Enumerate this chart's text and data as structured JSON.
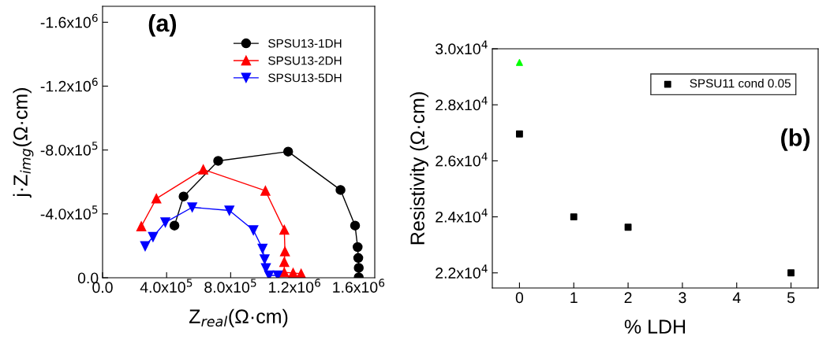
{
  "chart_data": [
    {
      "type": "line",
      "xlabel": "Z$_{real}$(Ω·cm)",
      "ylabel": "j·Z$_{img}$(Ω·cm)",
      "annotations": [
        "(a)"
      ],
      "xlim": [
        0,
        1700000
      ],
      "ylim": [
        0,
        -1700000
      ],
      "xticks": [
        {
          "value": 0,
          "label": "0.0"
        },
        {
          "value": 400000,
          "label": "4.0x10$^{5}$"
        },
        {
          "value": 800000,
          "label": "8.0x10$^{5}$"
        },
        {
          "value": 1200000,
          "label": "1.2x10$^{6}$"
        },
        {
          "value": 1600000,
          "label": "1.6x10$^{6}$"
        }
      ],
      "yticks": [
        {
          "value": 0,
          "label": "0.0"
        },
        {
          "value": -400000,
          "label": "-4.0x10$^{5}$"
        },
        {
          "value": -800000,
          "label": "-8.0x10$^{5}$"
        },
        {
          "value": -1200000,
          "label": "-1.2x10$^{6}$"
        },
        {
          "value": -1600000,
          "label": "-1.6x10$^{6}$"
        }
      ],
      "grid": false,
      "legend": "top right",
      "line_style": "solid",
      "series": [
        {
          "name": "SPSU13-1DH",
          "color": "#000000",
          "marker": "circle",
          "x": [
            449000,
            506000,
            722000,
            1159000,
            1486000,
            1577000,
            1593000,
            1597000,
            1600000,
            1600000
          ],
          "values": [
            -327000,
            -509000,
            -732000,
            -790000,
            -550000,
            -327000,
            -192000,
            -124000,
            -62000,
            -3000
          ]
        },
        {
          "name": "SPSU13-2DH",
          "color": "#ff0000",
          "marker": "triangle",
          "x": [
            242000,
            336000,
            629000,
            1017000,
            1135000,
            1139000,
            1135000,
            1135000,
            1190000,
            1240000
          ],
          "values": [
            -322000,
            -496000,
            -678000,
            -545000,
            -300000,
            -165000,
            -99000,
            -33000,
            -30000,
            -25000
          ]
        },
        {
          "name": "SPSU13-5DH",
          "color": "#0000ff",
          "marker": "triangle_down",
          "x": [
            266000,
            315000,
            392000,
            560000,
            792000,
            942000,
            999000,
            1012000,
            1020000,
            1040000,
            1094000
          ],
          "values": [
            -198000,
            -256000,
            -347000,
            -441000,
            -421000,
            -298000,
            -182000,
            -116000,
            -60000,
            -15000,
            -15000
          ]
        }
      ]
    },
    {
      "type": "scatter",
      "xlabel": "% LDH",
      "ylabel": "Resistivity (Ω·cm)",
      "annotations": [
        "(b)"
      ],
      "xlim": [
        -0.5,
        5.5
      ],
      "ylim": [
        21460,
        30000
      ],
      "xticks": [
        0,
        1,
        2,
        3,
        4,
        5
      ],
      "yticks": [
        {
          "value": 22000,
          "label": "2.2x10$^{4}$"
        },
        {
          "value": 24000,
          "label": "2.4x10$^{4}$"
        },
        {
          "value": 26000,
          "label": "2.6x10$^{4}$"
        },
        {
          "value": 28000,
          "label": "2.8x10$^{4}$"
        },
        {
          "value": 30000,
          "label": "3.0x10$^{4}$"
        }
      ],
      "grid": false,
      "legend": "top right",
      "series": [
        {
          "name": "SPSU11 cond 0.05",
          "color": "#000000",
          "marker": "square",
          "x": [
            0,
            1,
            2,
            5
          ],
          "values": [
            26960,
            24000,
            23630,
            22000
          ]
        },
        {
          "color": "#00ff00",
          "marker": "triangle",
          "x": [
            0
          ],
          "values": [
            29510
          ]
        }
      ]
    }
  ]
}
